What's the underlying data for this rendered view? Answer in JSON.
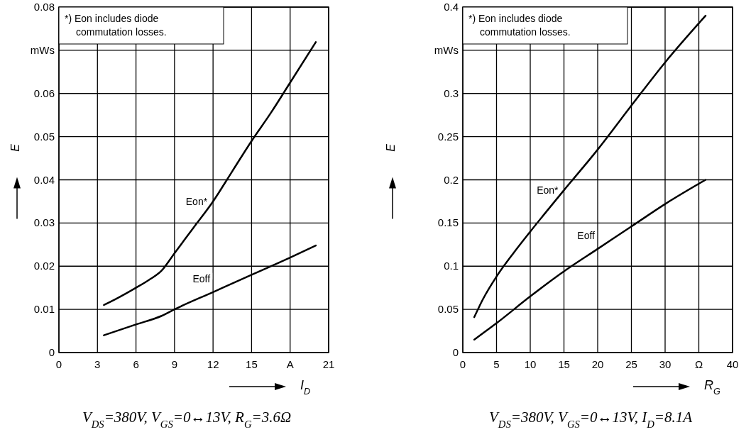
{
  "chart_data": [
    {
      "type": "line",
      "xlabel": "I$_{D}$",
      "ylabel": "E",
      "xlim": [
        0,
        21
      ],
      "xticks": [
        0,
        3,
        6,
        9,
        12,
        15,
        {
          "value": 18,
          "label": "A"
        },
        21
      ],
      "ylim": [
        0,
        0.08
      ],
      "yticks": [
        0,
        0.01,
        0.02,
        0.03,
        0.04,
        0.05,
        0.06,
        {
          "value": 0.07,
          "label": "mWs"
        },
        0.08
      ],
      "grid": true,
      "legend": false,
      "annotations": [
        "*) Eon includes diode commutation losses.",
        "V$_{DS}$=380V, V$_{GS}$=0↔13V, R$_{G}$=3.6Ω"
      ],
      "series": [
        {
          "name": "Eon*",
          "color": "#000000",
          "x": [
            3.5,
            4.5,
            6,
            7,
            8,
            9,
            10.5,
            12,
            13.5,
            15,
            16.5,
            18,
            20
          ],
          "values": [
            0.011,
            0.0125,
            0.015,
            0.0168,
            0.019,
            0.023,
            0.029,
            0.035,
            0.042,
            0.049,
            0.0555,
            0.0625,
            0.0719
          ]
        },
        {
          "name": "Eoff",
          "color": "#000000",
          "x": [
            3.5,
            6,
            8,
            9,
            12,
            15,
            18,
            20
          ],
          "values": [
            0.004,
            0.0065,
            0.0085,
            0.01,
            0.014,
            0.018,
            0.022,
            0.0248
          ]
        }
      ]
    },
    {
      "type": "line",
      "xlabel": "R$_{G}$",
      "ylabel": "E",
      "xlim": [
        0,
        40
      ],
      "xticks": [
        0,
        5,
        10,
        15,
        20,
        25,
        30,
        {
          "value": 35,
          "label": "Ω"
        },
        40
      ],
      "ylim": [
        0,
        0.4
      ],
      "yticks": [
        0,
        0.05,
        0.1,
        0.15,
        0.2,
        0.25,
        0.3,
        {
          "value": 0.35,
          "label": "mWs"
        },
        0.4
      ],
      "grid": true,
      "legend": false,
      "annotations": [
        "*) Eon includes diode commutation losses.",
        "V$_{DS}$=380V, V$_{GS}$=0↔13V, I$_{D}$=8.1A"
      ],
      "series": [
        {
          "name": "Eon*",
          "color": "#000000",
          "x": [
            1.7,
            3,
            5,
            7.5,
            10,
            15,
            20,
            25,
            30,
            36
          ],
          "values": [
            0.041,
            0.062,
            0.088,
            0.115,
            0.14,
            0.188,
            0.235,
            0.286,
            0.336,
            0.39
          ]
        },
        {
          "name": "Eoff",
          "color": "#000000",
          "x": [
            1.7,
            5,
            10,
            15,
            20,
            25,
            30,
            36
          ],
          "values": [
            0.015,
            0.034,
            0.065,
            0.094,
            0.12,
            0.146,
            0.172,
            0.2
          ]
        }
      ]
    }
  ]
}
